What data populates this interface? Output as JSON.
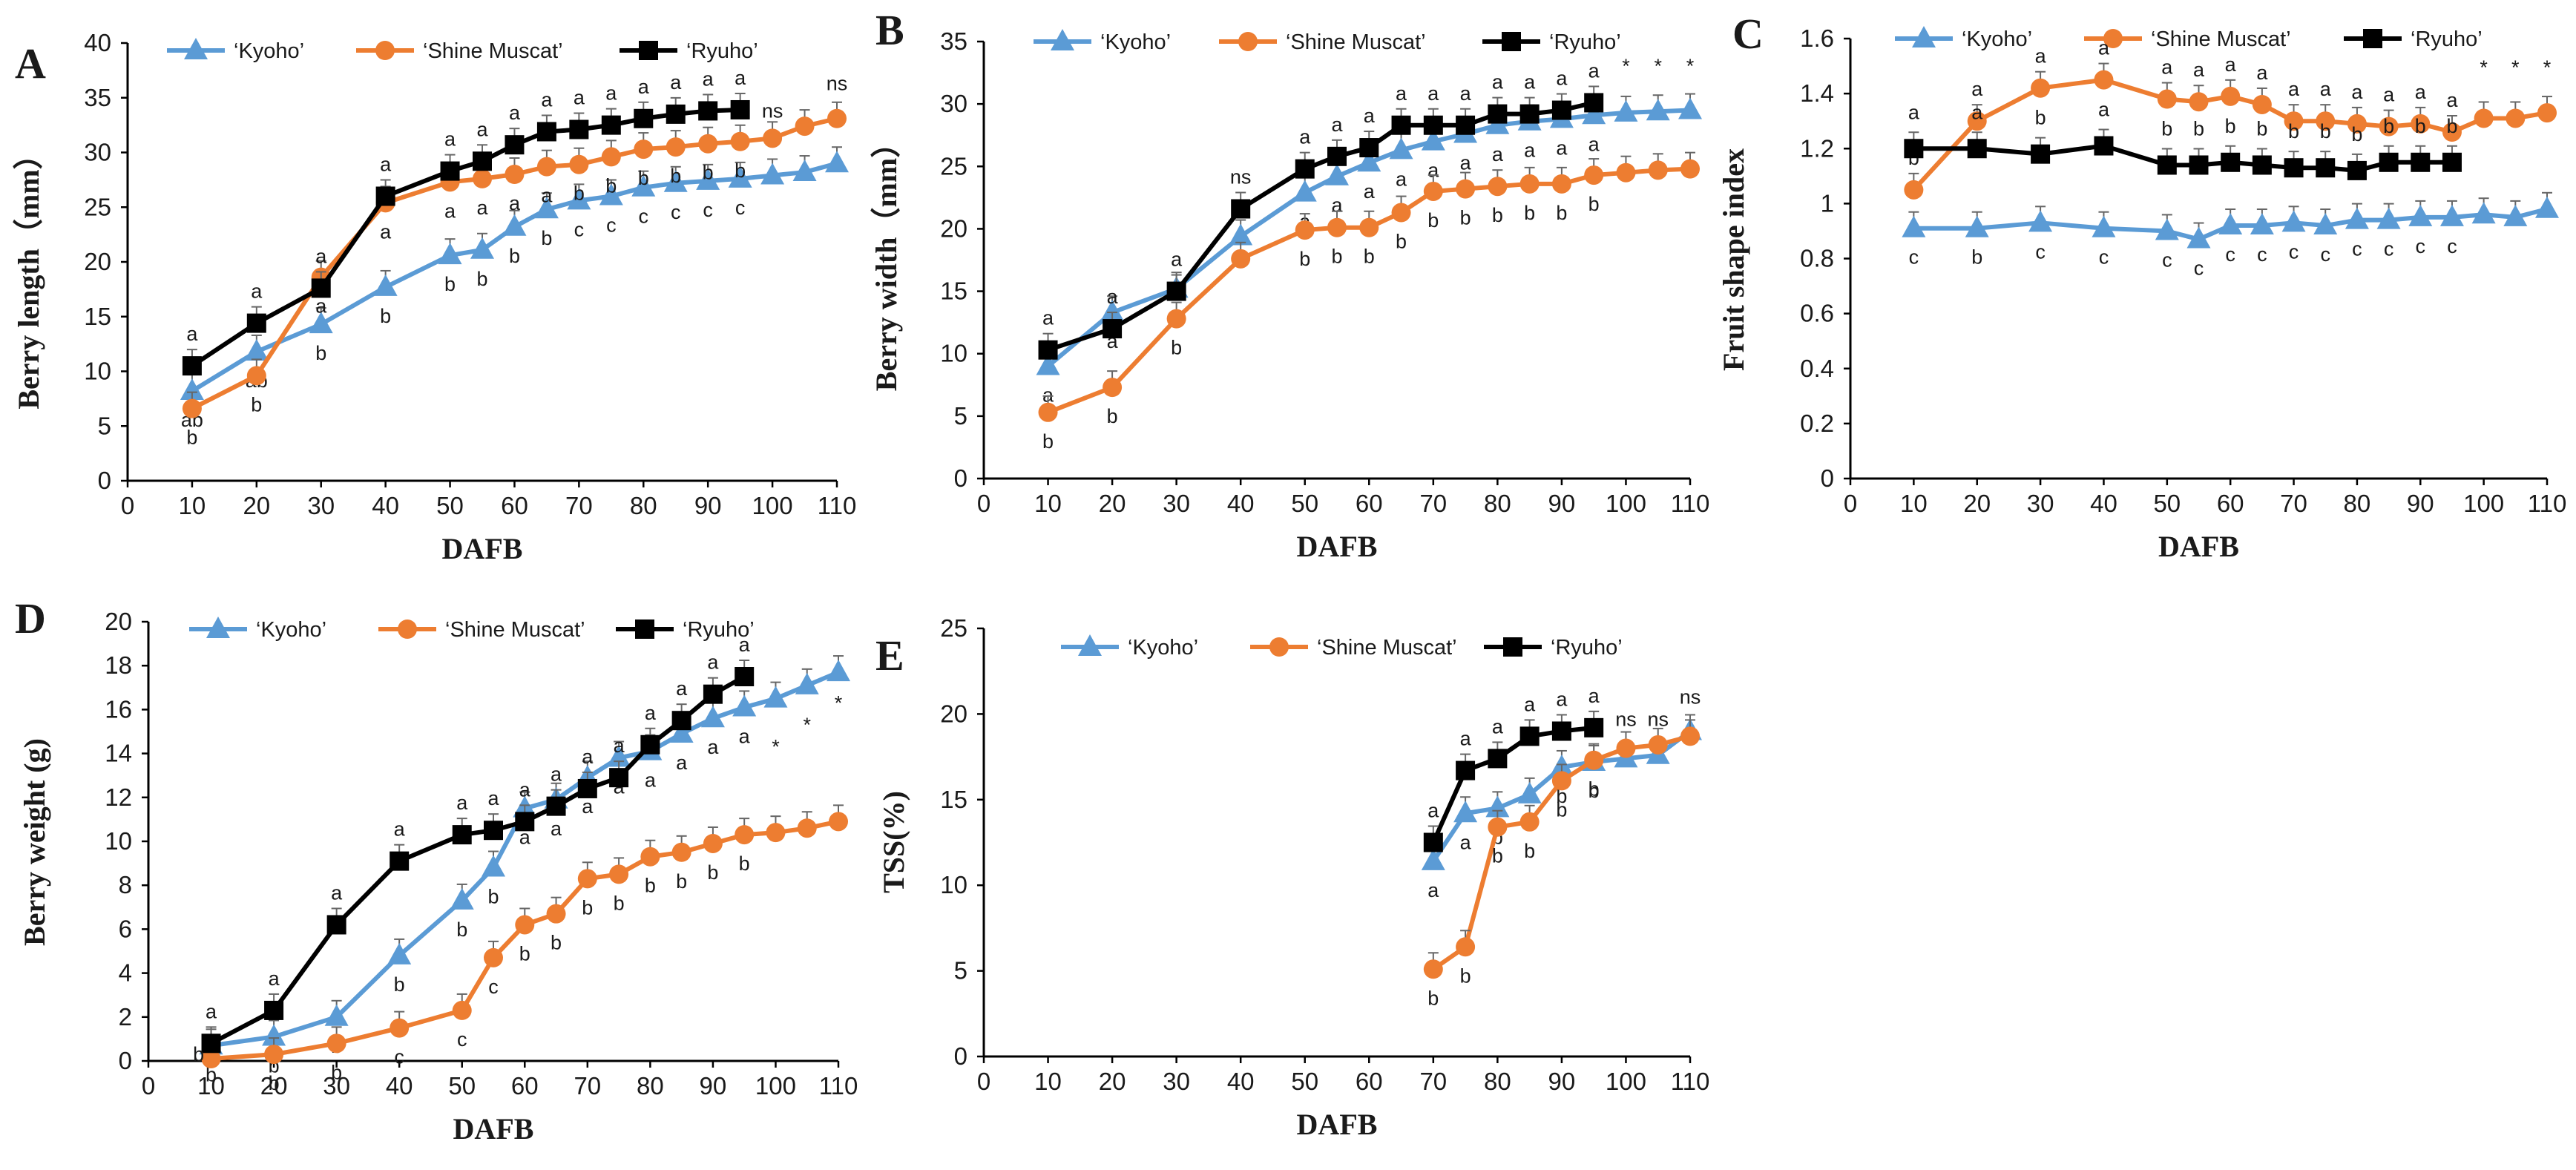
{
  "colors": {
    "kyoho": "#5B9BD5",
    "shine": "#ED7D31",
    "ryuho": "#000000",
    "axis": "#000000"
  },
  "chart_data": [
    {
      "panel": "A",
      "type": "line",
      "xlabel": "DAFB",
      "ylabel": "Berry length（mm）",
      "xlim": [
        0,
        110
      ],
      "ylim": [
        0,
        40
      ],
      "xticks": [
        "0",
        "10",
        "20",
        "30",
        "40",
        "50",
        "60",
        "70",
        "80",
        "90",
        "100",
        "110"
      ],
      "yticks": [
        "0",
        "5",
        "10",
        "15",
        "20",
        "25",
        "30",
        "35",
        "40"
      ],
      "legend": {
        "placement": "top",
        "entries": [
          "‘Kyoho’",
          "‘Shine Muscat’",
          "‘Ryuho’"
        ]
      },
      "series": [
        {
          "name": "‘Kyoho’",
          "marker": "triangle",
          "color": "#5B9BD5",
          "x": [
            10,
            20,
            30,
            40,
            50,
            55,
            60,
            65,
            70,
            75,
            80,
            85,
            90,
            95,
            100,
            105,
            110
          ],
          "y": [
            8.2,
            11.8,
            14.3,
            17.7,
            20.6,
            21.1,
            23.2,
            24.8,
            25.6,
            26.0,
            26.8,
            27.2,
            27.4,
            27.6,
            27.9,
            28.2,
            29.0
          ],
          "labels": [
            "ab",
            "ab",
            "b",
            "b",
            "b",
            "b",
            "b",
            "b",
            "c",
            "c",
            "c",
            "c",
            "c",
            "c",
            "",
            "",
            ""
          ],
          "label_pos": "below"
        },
        {
          "name": "‘Shine Muscat’",
          "marker": "circle",
          "color": "#ED7D31",
          "x": [
            10,
            20,
            30,
            40,
            50,
            55,
            60,
            65,
            70,
            75,
            80,
            85,
            90,
            95,
            100,
            105,
            110
          ],
          "y": [
            6.6,
            9.6,
            18.6,
            25.4,
            27.3,
            27.6,
            28.0,
            28.7,
            28.9,
            29.6,
            30.3,
            30.5,
            30.8,
            31.0,
            31.3,
            32.4,
            33.1
          ],
          "labels": [
            "b",
            "b",
            "a",
            "a",
            "a",
            "a",
            "a",
            "a",
            "b",
            "b",
            "b",
            "b",
            "b",
            "b",
            "",
            "",
            ""
          ],
          "label_pos": "below"
        },
        {
          "name": "‘Ryuho’",
          "marker": "square",
          "color": "#000000",
          "x": [
            10,
            20,
            30,
            40,
            50,
            55,
            60,
            65,
            70,
            75,
            80,
            85,
            90,
            95
          ],
          "y": [
            10.5,
            14.4,
            17.6,
            26.0,
            28.3,
            29.2,
            30.7,
            31.9,
            32.1,
            32.5,
            33.1,
            33.5,
            33.8,
            33.9
          ],
          "labels": [
            "a",
            "a",
            "a",
            "a",
            "a",
            "a",
            "a",
            "a",
            "a",
            "a",
            "a",
            "a",
            "a",
            "a"
          ],
          "label_pos": "above"
        }
      ],
      "annotations": [
        {
          "x": 100,
          "y": 33.2,
          "text": "ns"
        },
        {
          "x": 110,
          "y": 35.7,
          "text": "ns"
        }
      ]
    },
    {
      "panel": "B",
      "type": "line",
      "xlabel": "DAFB",
      "ylabel": "Berry width（mm）",
      "xlim": [
        0,
        110
      ],
      "ylim": [
        0,
        35
      ],
      "xticks": [
        "0",
        "10",
        "20",
        "30",
        "40",
        "50",
        "60",
        "70",
        "80",
        "90",
        "100",
        "110"
      ],
      "yticks": [
        "0",
        "5",
        "10",
        "15",
        "20",
        "25",
        "30",
        "35"
      ],
      "legend": {
        "placement": "top",
        "entries": [
          "‘Kyoho’",
          "‘Shine Muscat’",
          "‘Ryuho’"
        ]
      },
      "series": [
        {
          "name": "‘Kyoho’",
          "marker": "triangle",
          "color": "#5B9BD5",
          "x": [
            10,
            20,
            30,
            40,
            50,
            55,
            60,
            65,
            70,
            75,
            80,
            85,
            90,
            95,
            100,
            105,
            110
          ],
          "y": [
            9.0,
            13.3,
            15.2,
            19.4,
            22.9,
            24.2,
            25.3,
            26.3,
            27.0,
            27.6,
            28.3,
            28.6,
            28.8,
            29.1,
            29.3,
            29.4,
            29.5
          ],
          "labels": [
            "a",
            "a",
            "a",
            "",
            "a",
            "a",
            "a",
            "a",
            "a",
            "a",
            "a",
            "a",
            "a",
            "a",
            "",
            "",
            ""
          ],
          "label_pos": "below"
        },
        {
          "name": "‘Shine Muscat’",
          "marker": "circle",
          "color": "#ED7D31",
          "x": [
            10,
            20,
            30,
            40,
            50,
            55,
            60,
            65,
            70,
            75,
            80,
            85,
            90,
            95,
            100,
            105,
            110
          ],
          "y": [
            5.3,
            7.3,
            12.8,
            17.6,
            19.9,
            20.1,
            20.1,
            21.3,
            23.0,
            23.2,
            23.4,
            23.6,
            23.6,
            24.3,
            24.5,
            24.7,
            24.8
          ],
          "labels": [
            "b",
            "b",
            "b",
            "",
            "b",
            "b",
            "b",
            "b",
            "b",
            "b",
            "b",
            "b",
            "b",
            "b",
            "",
            "",
            ""
          ],
          "label_pos": "below"
        },
        {
          "name": "‘Ryuho’",
          "marker": "square",
          "color": "#000000",
          "x": [
            10,
            20,
            30,
            40,
            50,
            55,
            60,
            65,
            70,
            75,
            80,
            85,
            90,
            95
          ],
          "y": [
            10.3,
            12.0,
            15.0,
            21.6,
            24.8,
            25.8,
            26.5,
            28.3,
            28.3,
            28.3,
            29.2,
            29.2,
            29.5,
            30.1
          ],
          "labels": [
            "a",
            "a",
            "a",
            "ns",
            "a",
            "a",
            "a",
            "a",
            "a",
            "a",
            "a",
            "a",
            "a",
            "a"
          ],
          "label_pos": "above"
        }
      ],
      "annotations": [
        {
          "x": 100,
          "y": 32.5,
          "text": "*"
        },
        {
          "x": 105,
          "y": 32.5,
          "text": "*"
        },
        {
          "x": 110,
          "y": 32.5,
          "text": "*"
        }
      ]
    },
    {
      "panel": "C",
      "type": "line",
      "xlabel": "DAFB",
      "ylabel": "Fruit shape index",
      "xlim": [
        0,
        110
      ],
      "ylim": [
        0,
        1.6
      ],
      "xticks": [
        "0",
        "10",
        "20",
        "30",
        "40",
        "50",
        "60",
        "70",
        "80",
        "90",
        "100",
        "110"
      ],
      "yticks": [
        "0",
        "0.2",
        "0.4",
        "0.6",
        "0.8",
        "1",
        "1.2",
        "1.4",
        "1.6"
      ],
      "legend": {
        "placement": "top",
        "entries": [
          "‘Kyoho’",
          "‘Shine Muscat’",
          "‘Ryuho’"
        ]
      },
      "series": [
        {
          "name": "‘Kyoho’",
          "marker": "triangle",
          "color": "#5B9BD5",
          "x": [
            10,
            20,
            30,
            40,
            50,
            55,
            60,
            65,
            70,
            75,
            80,
            85,
            90,
            95,
            100,
            105,
            110
          ],
          "y": [
            0.91,
            0.91,
            0.93,
            0.91,
            0.9,
            0.87,
            0.92,
            0.92,
            0.93,
            0.92,
            0.94,
            0.94,
            0.95,
            0.95,
            0.96,
            0.95,
            0.98
          ],
          "labels": [
            "c",
            "b",
            "c",
            "c",
            "c",
            "c",
            "c",
            "c",
            "c",
            "c",
            "c",
            "c",
            "c",
            "c",
            "",
            "",
            ""
          ],
          "label_pos": "below"
        },
        {
          "name": "‘Shine Muscat’",
          "marker": "circle",
          "color": "#ED7D31",
          "x": [
            10,
            20,
            30,
            40,
            50,
            55,
            60,
            65,
            70,
            75,
            80,
            85,
            90,
            95,
            100,
            105,
            110
          ],
          "y": [
            1.05,
            1.3,
            1.42,
            1.45,
            1.38,
            1.37,
            1.39,
            1.36,
            1.3,
            1.3,
            1.29,
            1.28,
            1.29,
            1.26,
            1.31,
            1.31,
            1.33
          ],
          "labels": [
            "b",
            "a",
            "a",
            "a",
            "a",
            "a",
            "a",
            "a",
            "a",
            "a",
            "a",
            "a",
            "a",
            "a",
            "",
            "",
            ""
          ],
          "label_pos": "above"
        },
        {
          "name": "‘Ryuho’",
          "marker": "square",
          "color": "#000000",
          "x": [
            10,
            20,
            30,
            40,
            50,
            55,
            60,
            65,
            70,
            75,
            80,
            85,
            90,
            95
          ],
          "y": [
            1.2,
            1.2,
            1.18,
            1.21,
            1.14,
            1.14,
            1.15,
            1.14,
            1.13,
            1.13,
            1.12,
            1.15,
            1.15,
            1.15
          ],
          "labels": [
            "a",
            "a",
            "b",
            "a",
            "b",
            "b",
            "b",
            "b",
            "b",
            "b",
            "b",
            "b",
            "b",
            "b"
          ],
          "label_pos": "mid"
        }
      ],
      "annotations": [
        {
          "x": 100,
          "y": 1.47,
          "text": "*"
        },
        {
          "x": 105,
          "y": 1.47,
          "text": "*"
        },
        {
          "x": 110,
          "y": 1.47,
          "text": "*"
        }
      ]
    },
    {
      "panel": "D",
      "type": "line",
      "xlabel": "DAFB",
      "ylabel": "Berry weight (g)",
      "xlim": [
        0,
        110
      ],
      "ylim": [
        0,
        20
      ],
      "xticks": [
        "0",
        "10",
        "20",
        "30",
        "40",
        "50",
        "60",
        "70",
        "80",
        "90",
        "100",
        "110"
      ],
      "yticks": [
        "0",
        "2",
        "4",
        "6",
        "8",
        "10",
        "12",
        "14",
        "16",
        "18",
        "20"
      ],
      "legend": {
        "placement": "top",
        "entries": [
          "‘Kyoho’",
          "‘Shine Muscat’",
          "‘Ryuho’"
        ]
      },
      "series": [
        {
          "name": "‘Kyoho’",
          "marker": "triangle",
          "color": "#5B9BD5",
          "x": [
            10,
            20,
            30,
            40,
            50,
            55,
            60,
            65,
            70,
            75,
            80,
            85,
            90,
            95,
            100,
            105,
            110
          ],
          "y": [
            0.7,
            1.1,
            2.0,
            4.8,
            7.3,
            8.8,
            11.5,
            11.9,
            12.9,
            13.8,
            14.1,
            14.9,
            15.6,
            16.1,
            16.5,
            17.1,
            17.7
          ],
          "labels": [
            "b",
            "b",
            "b",
            "b",
            "b",
            "b",
            "a",
            "a",
            "a",
            "a",
            "a",
            "a",
            "a",
            "a",
            "",
            "",
            ""
          ],
          "label_pos": "below"
        },
        {
          "name": "‘Shine Muscat’",
          "marker": "circle",
          "color": "#ED7D31",
          "x": [
            10,
            20,
            30,
            40,
            50,
            55,
            60,
            65,
            70,
            75,
            80,
            85,
            90,
            95,
            100,
            105,
            110
          ],
          "y": [
            0.1,
            0.3,
            0.8,
            1.5,
            2.3,
            4.7,
            6.2,
            6.7,
            8.3,
            8.5,
            9.3,
            9.5,
            9.9,
            10.3,
            10.4,
            10.6,
            10.9
          ],
          "labels": [
            "",
            "b",
            "b",
            "c",
            "c",
            "c",
            "b",
            "b",
            "b",
            "b",
            "b",
            "b",
            "b",
            "b",
            "",
            "",
            ""
          ],
          "label_pos": "below"
        },
        {
          "name": "‘Ryuho’",
          "marker": "square",
          "color": "#000000",
          "x": [
            10,
            20,
            30,
            40,
            50,
            55,
            60,
            65,
            70,
            75,
            80,
            85,
            90,
            95
          ],
          "y": [
            0.8,
            2.3,
            6.2,
            9.1,
            10.3,
            10.5,
            10.9,
            11.6,
            12.4,
            12.9,
            14.4,
            15.5,
            16.7,
            17.5
          ],
          "labels": [
            "a",
            "a",
            "a",
            "a",
            "a",
            "a",
            "a",
            "a",
            "a",
            "a",
            "a",
            "a",
            "a",
            "a"
          ],
          "label_pos": "above"
        }
      ],
      "annotations": [
        {
          "x": 8,
          "y": 0.0,
          "text": "b"
        },
        {
          "x": 100,
          "y": 14.0,
          "text": "*"
        },
        {
          "x": 105,
          "y": 15.0,
          "text": "*"
        },
        {
          "x": 110,
          "y": 16.0,
          "text": "*"
        }
      ]
    },
    {
      "panel": "E",
      "type": "line",
      "xlabel": "DAFB",
      "ylabel": "TSS(%)",
      "xlim": [
        0,
        110
      ],
      "ylim": [
        0,
        25
      ],
      "xticks": [
        "0",
        "10",
        "20",
        "30",
        "40",
        "50",
        "60",
        "70",
        "80",
        "90",
        "100",
        "110"
      ],
      "yticks": [
        "0",
        "5",
        "10",
        "15",
        "20",
        "25"
      ],
      "legend": {
        "placement": "top",
        "entries": [
          "‘Kyoho’",
          "‘Shine Muscat’",
          "‘Ryuho’"
        ]
      },
      "series": [
        {
          "name": "‘Kyoho’",
          "marker": "triangle",
          "color": "#5B9BD5",
          "x": [
            70,
            75,
            80,
            85,
            90,
            95,
            100,
            105,
            110
          ],
          "y": [
            11.4,
            14.2,
            14.5,
            15.3,
            16.9,
            17.2,
            17.4,
            17.6,
            19.0
          ],
          "labels": [
            "a",
            "a",
            "b",
            "b",
            "b",
            "b",
            "",
            "",
            ""
          ],
          "label_pos": "below"
        },
        {
          "name": "‘Shine Muscat’",
          "marker": "circle",
          "color": "#ED7D31",
          "x": [
            70,
            75,
            80,
            85,
            90,
            95,
            100,
            105,
            110
          ],
          "y": [
            5.1,
            6.4,
            13.4,
            13.7,
            16.1,
            17.3,
            18.0,
            18.2,
            18.7
          ],
          "labels": [
            "b",
            "b",
            "b",
            "b",
            "b",
            "b",
            "",
            "",
            ""
          ],
          "label_pos": "below"
        },
        {
          "name": "‘Ryuho’",
          "marker": "square",
          "color": "#000000",
          "x": [
            70,
            75,
            80,
            85,
            90,
            95
          ],
          "y": [
            12.5,
            16.7,
            17.4,
            18.7,
            19.0,
            19.2
          ],
          "labels": [
            "a",
            "a",
            "a",
            "a",
            "a",
            "a"
          ],
          "label_pos": "above"
        }
      ],
      "annotations": [
        {
          "x": 100,
          "y": 19.3,
          "text": "ns"
        },
        {
          "x": 105,
          "y": 19.3,
          "text": "ns"
        },
        {
          "x": 110,
          "y": 20.6,
          "text": "ns"
        }
      ]
    }
  ]
}
